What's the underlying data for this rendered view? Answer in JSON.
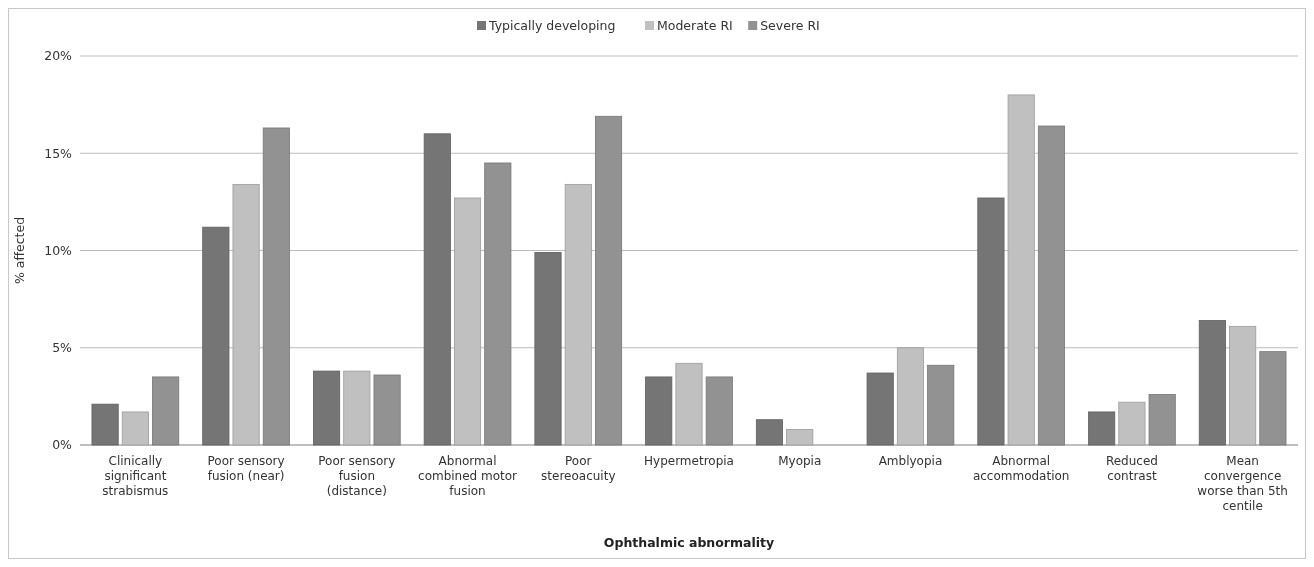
{
  "chart_data": {
    "type": "bar",
    "xlabel": "Ophthalmic abnormality",
    "ylabel": "% affected",
    "categories": [
      "Clinically significant strabismus",
      "Poor sensory fusion (near)",
      "Poor sensory fusion (distance)",
      "Abnormal combined motor fusion",
      "Poor stereoacuity",
      "Hypermetropia",
      "Myopia",
      "Amblyopia",
      "Abnormal accommodation",
      "Reduced contrast",
      "Mean convergence worse than 5th centile"
    ],
    "series": [
      {
        "name": "Typically developing",
        "color": "#757575",
        "values": [
          2.1,
          11.2,
          3.8,
          16.0,
          9.9,
          3.5,
          1.3,
          3.7,
          12.7,
          1.7,
          6.4
        ]
      },
      {
        "name": "Moderate RI",
        "color": "#c0c0c0",
        "values": [
          1.7,
          13.4,
          3.8,
          12.7,
          13.4,
          4.2,
          0.8,
          5.0,
          18.0,
          2.2,
          6.1
        ]
      },
      {
        "name": "Severe RI",
        "color": "#929292",
        "values": [
          3.5,
          16.3,
          3.6,
          14.5,
          16.9,
          3.5,
          0,
          4.1,
          16.4,
          2.6,
          4.8
        ]
      }
    ],
    "ylim": [
      0,
      20
    ],
    "yticks": [
      {
        "value": 0,
        "label": "0%"
      },
      {
        "value": 5,
        "label": "5%"
      },
      {
        "value": 10,
        "label": "10%"
      },
      {
        "value": 15,
        "label": "15%"
      },
      {
        "value": 20,
        "label": "20%"
      }
    ],
    "grid": "y",
    "legend": "top"
  }
}
